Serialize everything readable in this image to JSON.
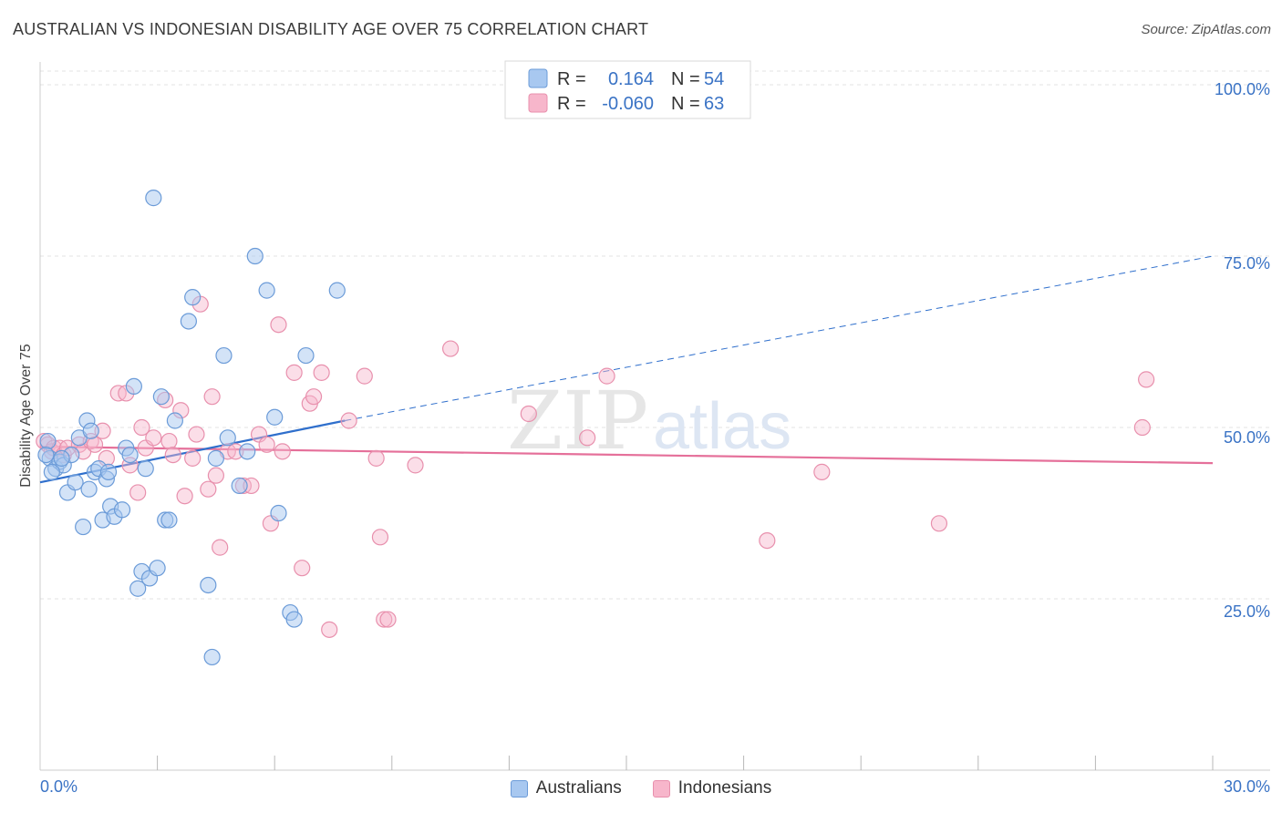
{
  "header": {
    "title": "AUSTRALIAN VS INDONESIAN DISABILITY AGE OVER 75 CORRELATION CHART",
    "source": "Source: ZipAtlas.com"
  },
  "watermark": {
    "zip": "ZIP",
    "atlas": "atlas"
  },
  "legend_box": {
    "rows": [
      {
        "r_label": "R =",
        "r_value": "0.164",
        "n_label": "N =",
        "n_value": "54"
      },
      {
        "r_label": "R =",
        "r_value": "-0.060",
        "n_label": "N =",
        "n_value": "63"
      }
    ]
  },
  "bottom_legend": {
    "australians": "Australians",
    "indonesians": "Indonesians"
  },
  "chart_data": {
    "type": "scatter",
    "title": "AUSTRALIAN VS INDONESIAN DISABILITY AGE OVER 75 CORRELATION CHART",
    "ylabel": "Disability Age Over 75",
    "xlabel": "",
    "xlim": [
      0,
      30
    ],
    "ylim": [
      0,
      102
    ],
    "x_tick_labels": [
      "0.0%",
      "30.0%"
    ],
    "y_ticks": [
      25,
      50,
      75,
      100
    ],
    "y_tick_labels": [
      "25.0%",
      "50.0%",
      "75.0%",
      "100.0%"
    ],
    "grid": true,
    "legend_placement": "top-center",
    "colors": {
      "australians_fill": "#a8c8f0",
      "australians_stroke": "#6b9bd8",
      "australians_line": "#2f6fcc",
      "indonesians_fill": "#f7b6cb",
      "indonesians_stroke": "#e890ad",
      "indonesians_line": "#e5709a",
      "tick_text": "#3a73c5"
    },
    "series": [
      {
        "name": "Australians",
        "r": 0.164,
        "n": 54,
        "trend": {
          "x0": 0,
          "y0": 42,
          "x1": 7.8,
          "y1": 51,
          "dashed_to_x": 30,
          "dashed_to_y": 75
        },
        "points": [
          [
            0.2,
            48
          ],
          [
            0.25,
            45.5
          ],
          [
            0.4,
            44
          ],
          [
            0.5,
            45
          ],
          [
            0.6,
            44.5
          ],
          [
            0.7,
            40.5
          ],
          [
            0.8,
            46
          ],
          [
            0.9,
            42
          ],
          [
            1.0,
            48.5
          ],
          [
            1.1,
            35.5
          ],
          [
            1.2,
            51
          ],
          [
            1.25,
            41
          ],
          [
            1.3,
            49.5
          ],
          [
            1.4,
            43.5
          ],
          [
            1.5,
            44
          ],
          [
            1.6,
            36.5
          ],
          [
            1.7,
            42.5
          ],
          [
            1.75,
            43.5
          ],
          [
            1.8,
            38.5
          ],
          [
            1.9,
            37
          ],
          [
            2.1,
            38
          ],
          [
            2.2,
            47
          ],
          [
            2.3,
            46
          ],
          [
            2.4,
            56
          ],
          [
            2.5,
            26.5
          ],
          [
            2.6,
            29
          ],
          [
            2.7,
            44
          ],
          [
            2.8,
            28
          ],
          [
            2.9,
            83.5
          ],
          [
            3.0,
            29.5
          ],
          [
            3.1,
            54.5
          ],
          [
            3.2,
            36.5
          ],
          [
            3.3,
            36.5
          ],
          [
            3.45,
            51
          ],
          [
            3.8,
            65.5
          ],
          [
            3.9,
            69
          ],
          [
            4.3,
            27
          ],
          [
            4.5,
            45.5
          ],
          [
            4.4,
            16.5
          ],
          [
            4.7,
            60.5
          ],
          [
            4.8,
            48.5
          ],
          [
            5.1,
            41.5
          ],
          [
            5.3,
            46.5
          ],
          [
            5.5,
            75
          ],
          [
            5.8,
            70
          ],
          [
            6.0,
            51.5
          ],
          [
            6.1,
            37.5
          ],
          [
            6.4,
            23
          ],
          [
            6.5,
            22
          ],
          [
            6.8,
            60.5
          ],
          [
            7.6,
            70
          ],
          [
            0.15,
            46
          ],
          [
            0.3,
            43.5
          ],
          [
            0.55,
            45.5
          ]
        ]
      },
      {
        "name": "Indonesians",
        "r": -0.06,
        "n": 63,
        "trend": {
          "x0": 0,
          "y0": 47.2,
          "x1": 30,
          "y1": 44.8
        },
        "points": [
          [
            0.1,
            48
          ],
          [
            0.2,
            47.5
          ],
          [
            0.3,
            46.5
          ],
          [
            0.35,
            47
          ],
          [
            0.5,
            47
          ],
          [
            0.6,
            46
          ],
          [
            0.7,
            47
          ],
          [
            1.0,
            47.5
          ],
          [
            1.1,
            46.5
          ],
          [
            1.3,
            48
          ],
          [
            1.4,
            47.5
          ],
          [
            1.6,
            49.5
          ],
          [
            1.7,
            45.5
          ],
          [
            2.0,
            55
          ],
          [
            2.2,
            55
          ],
          [
            2.3,
            44.5
          ],
          [
            2.5,
            40.5
          ],
          [
            2.6,
            50
          ],
          [
            2.7,
            47
          ],
          [
            2.9,
            48.5
          ],
          [
            3.2,
            54
          ],
          [
            3.3,
            48
          ],
          [
            3.4,
            46
          ],
          [
            3.6,
            52.5
          ],
          [
            3.7,
            40
          ],
          [
            3.9,
            45.5
          ],
          [
            4.0,
            49
          ],
          [
            4.1,
            68
          ],
          [
            4.3,
            41
          ],
          [
            4.4,
            54.5
          ],
          [
            4.5,
            43
          ],
          [
            4.6,
            32.5
          ],
          [
            4.8,
            46.5
          ],
          [
            5.0,
            46.5
          ],
          [
            5.2,
            41.5
          ],
          [
            5.4,
            41.5
          ],
          [
            5.6,
            49
          ],
          [
            5.8,
            47.5
          ],
          [
            5.9,
            36
          ],
          [
            6.1,
            65
          ],
          [
            6.2,
            46.5
          ],
          [
            6.5,
            58
          ],
          [
            6.7,
            29.5
          ],
          [
            6.9,
            53.5
          ],
          [
            7.0,
            54.5
          ],
          [
            7.2,
            58
          ],
          [
            7.4,
            20.5
          ],
          [
            7.9,
            51
          ],
          [
            8.3,
            57.5
          ],
          [
            8.6,
            45.5
          ],
          [
            8.7,
            34
          ],
          [
            8.8,
            22
          ],
          [
            8.9,
            22
          ],
          [
            9.6,
            44.5
          ],
          [
            10.5,
            61.5
          ],
          [
            12.5,
            52
          ],
          [
            14.0,
            48.5
          ],
          [
            14.5,
            57.5
          ],
          [
            18.6,
            33.5
          ],
          [
            20.0,
            43.5
          ],
          [
            23.0,
            36
          ],
          [
            28.2,
            50
          ],
          [
            28.3,
            57
          ]
        ]
      }
    ]
  }
}
